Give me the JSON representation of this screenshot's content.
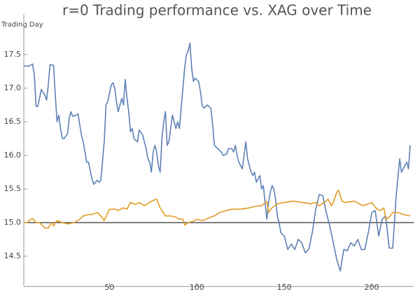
{
  "chart_data": {
    "type": "line",
    "title": "r=0 Trading performance vs. XAG over Time",
    "y_label": "Trading Day",
    "xlim": [
      1,
      224
    ],
    "ylim": [
      14.05,
      18.1
    ],
    "xticks": [
      50,
      100,
      150,
      200
    ],
    "yticks": [
      14.5,
      {
        "value": 15,
        "label": "15.0"
      },
      15.5,
      {
        "value": 16,
        "label": "16.0"
      },
      16.5,
      {
        "value": 17,
        "label": "17.0"
      },
      17.5
    ],
    "reference_line": 15,
    "series": [
      {
        "color": "#5e81b5",
        "x": [
          1,
          4,
          6,
          7,
          8,
          9,
          11,
          13,
          14,
          15,
          16,
          18,
          19,
          20,
          21,
          22,
          23,
          24,
          26,
          27,
          28,
          29,
          31,
          32,
          34,
          35,
          37,
          38,
          40,
          41,
          43,
          44,
          45,
          47,
          48,
          49,
          51,
          52,
          53,
          54,
          55,
          57,
          58,
          59,
          60,
          61,
          62,
          63,
          64,
          66,
          67,
          69,
          71,
          72,
          73,
          74,
          75,
          76,
          77,
          78,
          79,
          80,
          81,
          82,
          83,
          84,
          86,
          87,
          88,
          89,
          90,
          91,
          93,
          94,
          95,
          96,
          97,
          98,
          99,
          101,
          102,
          103,
          104,
          106,
          108,
          109,
          110,
          112,
          114,
          115,
          117,
          118,
          120,
          121,
          122,
          123,
          124,
          125,
          126,
          128,
          129,
          130,
          131,
          132,
          133,
          134,
          136,
          137,
          138,
          139,
          140,
          141,
          142,
          143,
          144,
          145,
          146,
          147,
          148,
          150,
          152,
          154,
          156,
          158,
          160,
          162,
          164,
          166,
          168,
          170,
          172,
          174,
          176,
          178,
          180,
          182,
          184,
          186,
          188,
          190,
          192,
          194,
          196,
          198,
          200,
          202,
          204,
          206,
          208,
          210,
          212,
          213,
          214,
          216,
          217,
          219,
          220,
          221,
          222
        ],
        "values": [
          17.33,
          17.33,
          17.36,
          17.2,
          16.73,
          16.73,
          16.98,
          16.9,
          16.82,
          17.05,
          17.35,
          17.34,
          16.9,
          16.5,
          16.6,
          16.4,
          16.25,
          16.25,
          16.32,
          16.55,
          16.65,
          16.58,
          16.6,
          16.62,
          16.3,
          16.2,
          15.9,
          15.9,
          15.65,
          15.57,
          15.63,
          15.6,
          15.62,
          16.2,
          16.75,
          16.8,
          17.05,
          17.08,
          17.0,
          16.8,
          16.65,
          16.85,
          16.75,
          17.13,
          16.85,
          16.65,
          16.35,
          16.4,
          16.25,
          16.2,
          16.38,
          16.3,
          16.1,
          15.95,
          15.9,
          15.75,
          16.05,
          16.15,
          16.05,
          15.85,
          15.75,
          16.25,
          16.5,
          16.65,
          16.15,
          16.2,
          16.6,
          16.5,
          16.4,
          16.5,
          16.4,
          16.7,
          17.3,
          17.5,
          17.55,
          17.67,
          17.3,
          17.1,
          17.15,
          17.1,
          16.95,
          16.75,
          16.7,
          16.75,
          16.7,
          16.45,
          16.15,
          16.1,
          16.05,
          16.0,
          16.02,
          16.1,
          16.1,
          16.05,
          16.15,
          16.0,
          15.9,
          15.85,
          15.8,
          16.2,
          15.95,
          15.85,
          15.75,
          15.7,
          15.75,
          15.6,
          15.7,
          15.5,
          15.55,
          15.3,
          15.05,
          15.3,
          15.45,
          15.55,
          15.5,
          15.35,
          15.1,
          15.0,
          14.85,
          14.8,
          14.6,
          14.68,
          14.6,
          14.75,
          14.7,
          14.55,
          14.6,
          14.85,
          15.2,
          15.42,
          15.4,
          15.15,
          14.95,
          14.7,
          14.45,
          14.28,
          14.6,
          14.58,
          14.7,
          14.65,
          14.75,
          14.6,
          14.6,
          14.85,
          15.15,
          15.18,
          14.8,
          15.05,
          15.1,
          14.62,
          14.62,
          15.0,
          15.4,
          15.95,
          15.75,
          15.85,
          15.9,
          15.8,
          16.15
        ]
      },
      {
        "color": "#e19c24",
        "x": [
          1,
          3,
          5,
          6,
          8,
          10,
          13,
          15,
          17,
          18,
          20,
          23,
          26,
          30,
          33,
          35,
          38,
          40,
          43,
          45,
          47,
          50,
          53,
          55,
          58,
          60,
          62,
          65,
          67,
          70,
          73,
          75,
          77,
          79,
          82,
          85,
          88,
          90,
          92,
          93,
          95,
          98,
          100,
          103,
          105,
          108,
          110,
          113,
          117,
          120,
          125,
          130,
          135,
          137,
          140,
          141,
          143,
          146,
          150,
          155,
          160,
          165,
          168,
          170,
          173,
          175,
          177,
          178,
          180,
          181,
          183,
          185,
          190,
          195,
          200,
          203,
          205,
          207,
          208,
          210,
          212,
          215,
          218,
          222
        ],
        "values": [
          15.0,
          15.0,
          15.05,
          15.06,
          15.0,
          15.0,
          14.92,
          14.92,
          15.0,
          14.95,
          15.03,
          15.0,
          14.98,
          15.0,
          15.05,
          15.1,
          15.12,
          15.12,
          15.15,
          15.1,
          15.03,
          15.2,
          15.2,
          15.18,
          15.22,
          15.2,
          15.3,
          15.27,
          15.3,
          15.25,
          15.3,
          15.33,
          15.35,
          15.22,
          15.1,
          15.1,
          15.08,
          15.05,
          15.05,
          14.96,
          15.0,
          15.02,
          15.05,
          15.03,
          15.05,
          15.08,
          15.1,
          15.15,
          15.18,
          15.2,
          15.2,
          15.22,
          15.25,
          15.25,
          15.32,
          15.15,
          15.22,
          15.28,
          15.3,
          15.32,
          15.3,
          15.28,
          15.3,
          15.25,
          15.3,
          15.35,
          15.25,
          15.3,
          15.45,
          15.48,
          15.32,
          15.3,
          15.32,
          15.25,
          15.3,
          15.2,
          15.18,
          15.22,
          15.05,
          15.08,
          15.15,
          15.15,
          15.12,
          15.1
        ]
      }
    ]
  }
}
